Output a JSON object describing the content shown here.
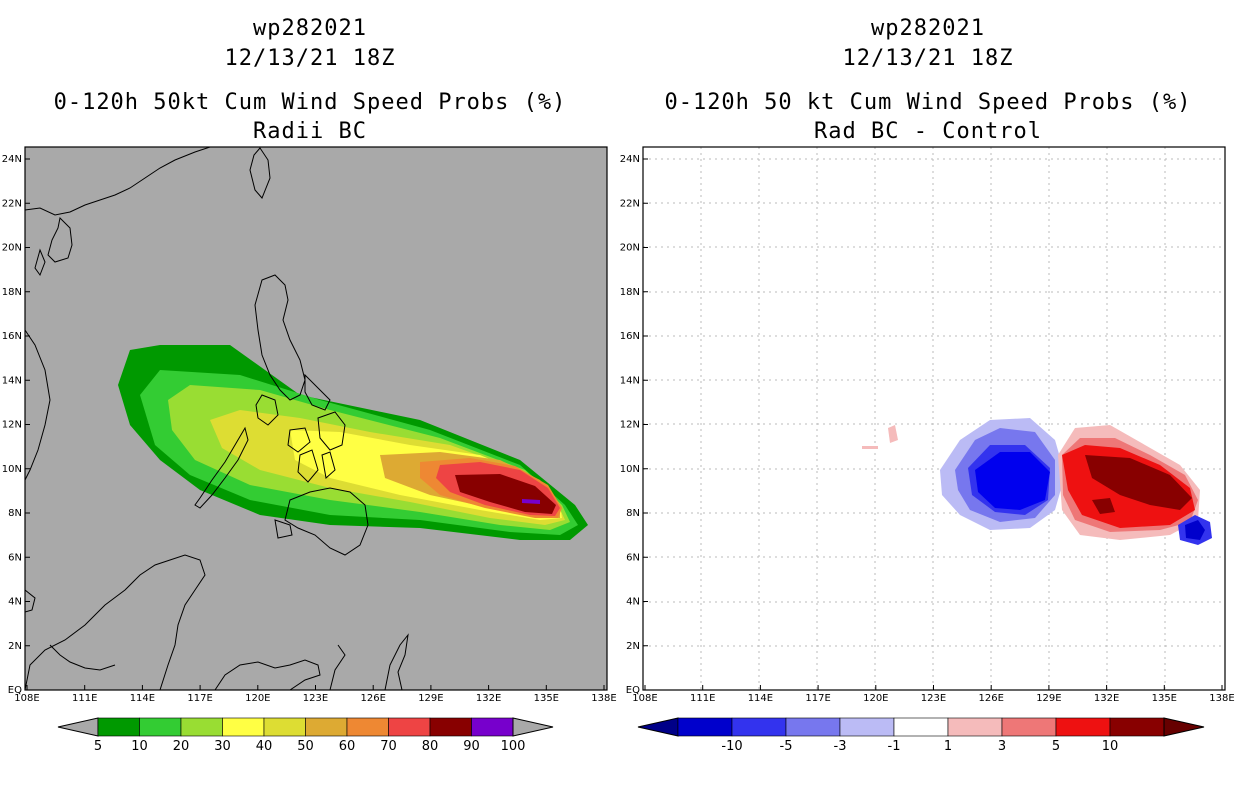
{
  "left_panel": {
    "title_line1": "wp282021",
    "title_line2": "12/13/21 18Z",
    "title_line3": "0-120h 50kt Cum Wind Speed Probs (%)",
    "title_line4": "Radii BC",
    "background": "#a9a9a9",
    "colorbar": {
      "colors": [
        "#009900",
        "#33cc33",
        "#99dd33",
        "#ffff44",
        "#dddd33",
        "#ddaa33",
        "#ee8833",
        "#ee4444",
        "#880000",
        "#7700cc"
      ],
      "labels": [
        "5",
        "10",
        "20",
        "30",
        "40",
        "50",
        "60",
        "70",
        "80",
        "90",
        "100"
      ]
    }
  },
  "right_panel": {
    "title_line1": "wp282021",
    "title_line2": "12/13/21 18Z",
    "title_line3": "0-120h 50 kt Cum Wind Speed Probs (%)",
    "title_line4": "Rad BC - Control",
    "background": "#ffffff",
    "colorbar": {
      "colors": [
        "#0000cc",
        "#3333ee",
        "#7777ee",
        "#bbbbf5",
        "#ffffff",
        "#f5bbbb",
        "#ee7777",
        "#ee1111",
        "#880000"
      ],
      "labels": [
        "-10",
        "-5",
        "-3",
        "-1",
        "1",
        "3",
        "5",
        "10"
      ]
    }
  },
  "axes": {
    "x_ticks": [
      "108E",
      "111E",
      "114E",
      "117E",
      "120E",
      "123E",
      "126E",
      "129E",
      "132E",
      "135E",
      "138E"
    ],
    "y_ticks": [
      "EQ",
      "2N",
      "4N",
      "6N",
      "8N",
      "10N",
      "12N",
      "14N",
      "16N",
      "18N",
      "20N",
      "22N",
      "24N"
    ]
  }
}
